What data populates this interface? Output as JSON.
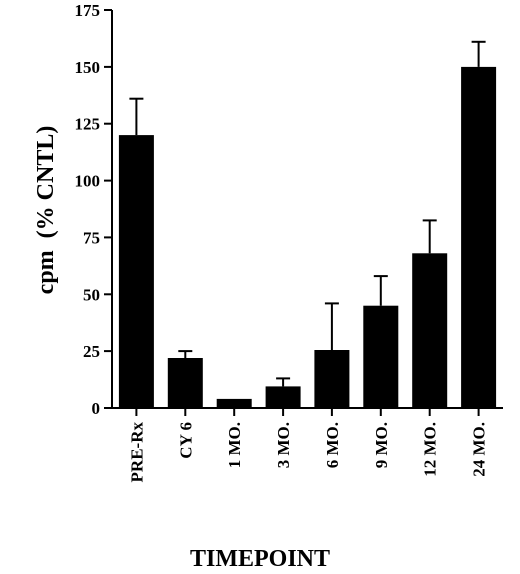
{
  "chart_data": {
    "type": "bar",
    "title": "",
    "xlabel": "TIMEPOINT",
    "ylabel": "cpm  (% CNTL)",
    "categories": [
      "PRE-Rx",
      "CY 6",
      "1 MO.",
      "3 MO.",
      "6 MO.",
      "9 MO.",
      "12 MO.",
      "24 MO."
    ],
    "values": [
      120,
      22,
      4,
      9.5,
      25.5,
      45,
      68,
      150
    ],
    "error_upper": [
      16,
      3,
      0,
      3.5,
      20.5,
      13,
      14.5,
      11
    ],
    "ylim": [
      0,
      175
    ],
    "yticks": [
      0,
      25,
      50,
      75,
      100,
      125,
      150,
      175
    ],
    "bar_color": "#000000",
    "grid": false,
    "legend": "none"
  }
}
